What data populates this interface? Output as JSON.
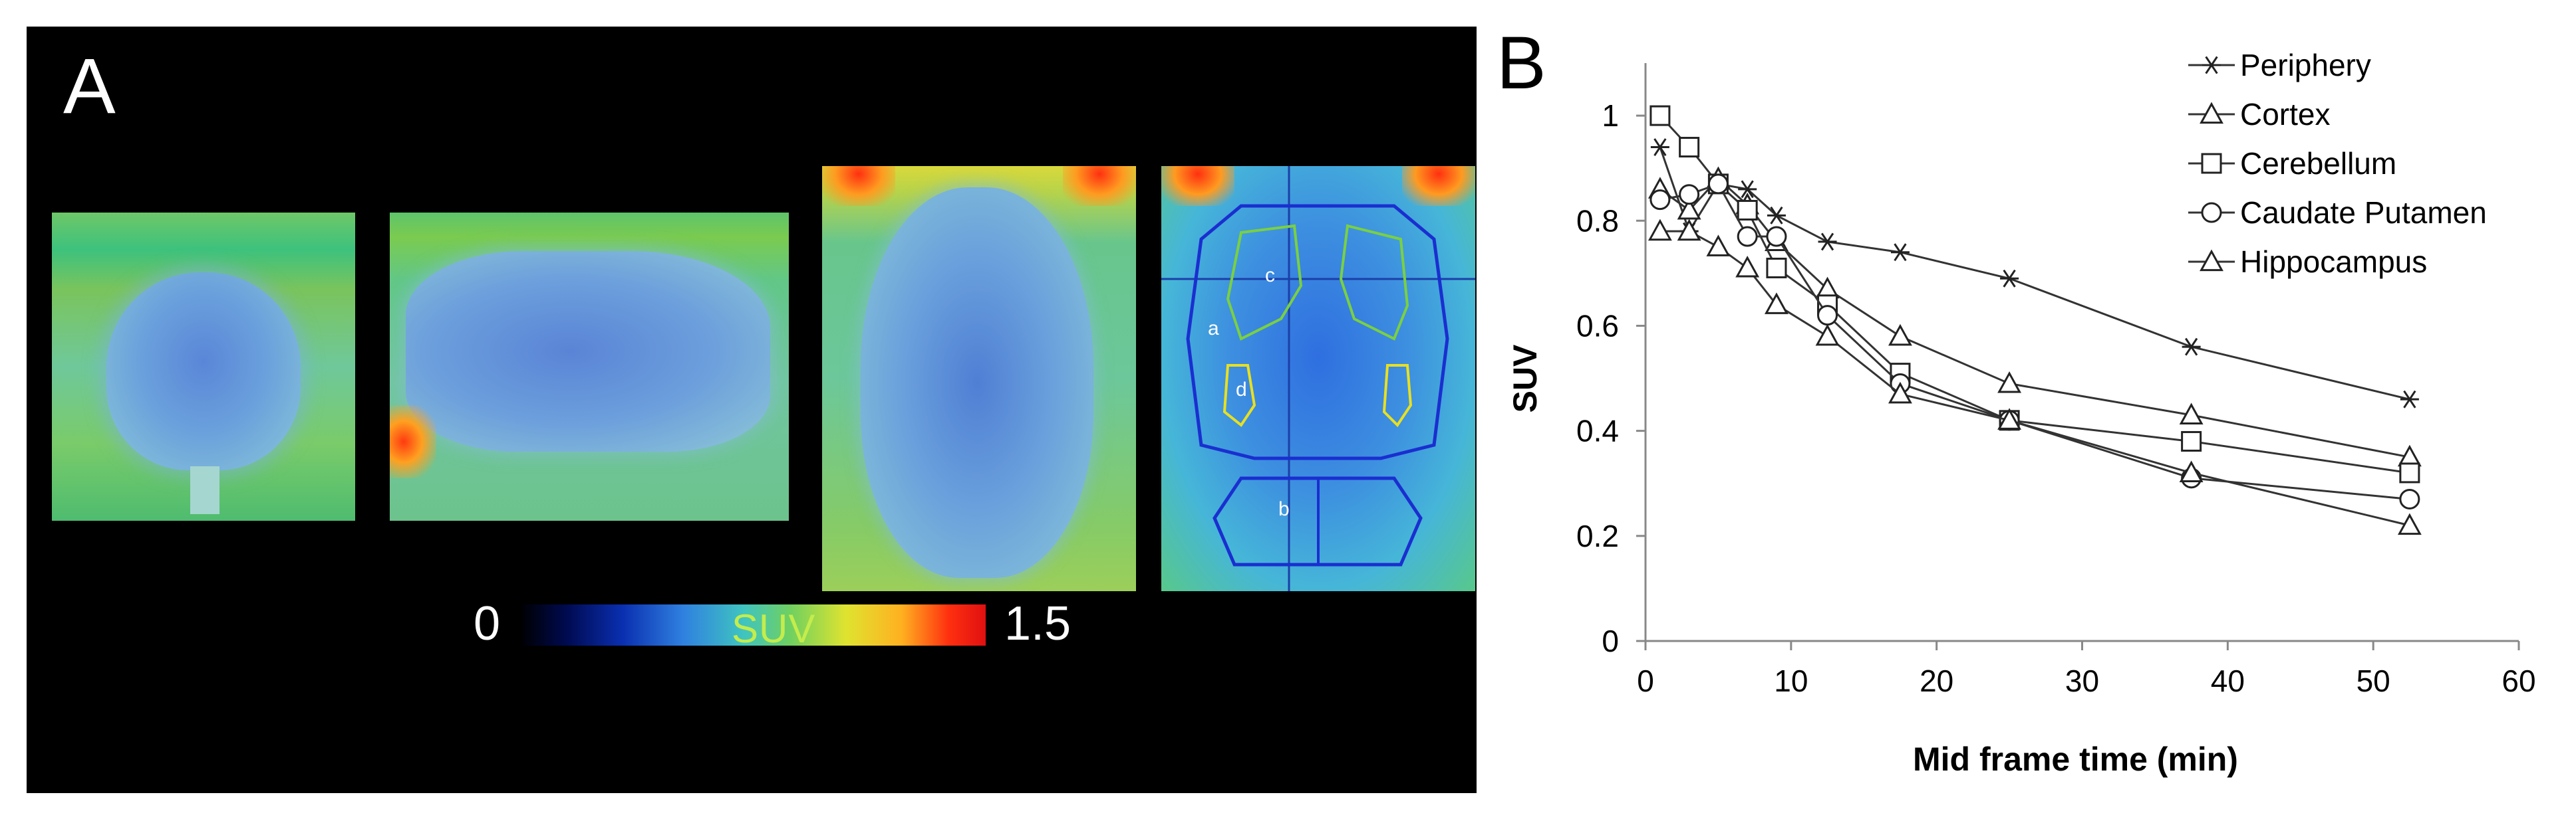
{
  "panel_a": {
    "letter": "A",
    "roi_labels": [
      "c",
      "a",
      "d",
      "b"
    ],
    "colorbar": {
      "min": "0",
      "label": "SUV",
      "max": "1.5"
    }
  },
  "panel_b": {
    "letter": "B"
  },
  "chart_data": {
    "type": "line",
    "title": "",
    "xlabel": "Mid frame time (min)",
    "ylabel": "SUV",
    "xlim": [
      0,
      60
    ],
    "ylim": [
      0,
      1.1
    ],
    "x_ticks": [
      0,
      10,
      20,
      30,
      40,
      50,
      60
    ],
    "y_ticks": [
      0,
      0.2,
      0.4,
      0.6,
      0.8,
      1
    ],
    "y_tick_labels": [
      "0",
      "0.2",
      "0.4",
      "0.6",
      "0.8",
      "1"
    ],
    "x_tick_labels": [
      "0",
      "10",
      "20",
      "30",
      "40",
      "50",
      "60"
    ],
    "legend_position": "top-right",
    "grid": false,
    "series": [
      {
        "name": "Periphery",
        "marker": "asterisk",
        "x": [
          1,
          3,
          5,
          7,
          9,
          12.5,
          17.5,
          25,
          37.5,
          52.5
        ],
        "y": [
          0.94,
          0.78,
          0.87,
          0.86,
          0.81,
          0.76,
          0.74,
          0.69,
          0.56,
          0.46
        ]
      },
      {
        "name": "Cortex",
        "marker": "triangle",
        "x": [
          1,
          3,
          5,
          7,
          9,
          12.5,
          17.5,
          25,
          37.5,
          52.5
        ],
        "y": [
          0.86,
          0.82,
          0.88,
          0.83,
          0.76,
          0.67,
          0.58,
          0.49,
          0.43,
          0.35
        ]
      },
      {
        "name": "Cerebellum",
        "marker": "square",
        "x": [
          1,
          3,
          5,
          7,
          9,
          12.5,
          17.5,
          25,
          37.5,
          52.5
        ],
        "y": [
          1.0,
          0.94,
          0.87,
          0.82,
          0.71,
          0.64,
          0.51,
          0.42,
          0.38,
          0.32
        ]
      },
      {
        "name": "Caudate Putamen",
        "marker": "circle",
        "x": [
          1,
          3,
          5,
          7,
          9,
          12.5,
          17.5,
          25,
          37.5,
          52.5
        ],
        "y": [
          0.84,
          0.85,
          0.87,
          0.77,
          0.77,
          0.62,
          0.49,
          0.42,
          0.31,
          0.27
        ]
      },
      {
        "name": "Hippocampus",
        "marker": "triangle",
        "x": [
          1,
          3,
          5,
          7,
          9,
          12.5,
          17.5,
          25,
          37.5,
          52.5
        ],
        "y": [
          0.78,
          0.78,
          0.75,
          0.71,
          0.64,
          0.58,
          0.47,
          0.42,
          0.32,
          0.22
        ]
      }
    ]
  }
}
